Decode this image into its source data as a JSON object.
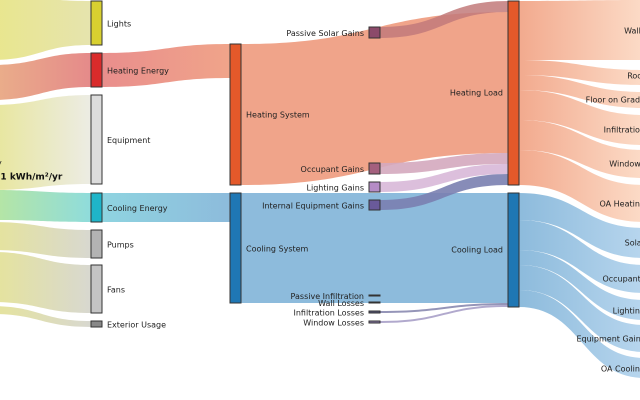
{
  "total": {
    "label_suffix": "y",
    "value_text": ".1 kWh/m²/yr"
  },
  "sources": [
    {
      "label": "Lights",
      "color": "#d8d030"
    },
    {
      "label": "Heating Energy",
      "color": "#d92b2b"
    },
    {
      "label": "Equipment",
      "color": "#dcdcdc"
    },
    {
      "label": "Cooling Energy",
      "color": "#1fb5c9"
    },
    {
      "label": "Pumps",
      "color": "#b3b3b3"
    },
    {
      "label": "Fans",
      "color": "#c4c4c4"
    },
    {
      "label": "Exterior Usage",
      "color": "#888888"
    }
  ],
  "systems": [
    {
      "label": "Heating System",
      "color": "#e4592a"
    },
    {
      "label": "Cooling System",
      "color": "#1f77b4"
    }
  ],
  "gains": [
    {
      "label": "Passive Solar Gains",
      "color": "#8c4a6a"
    },
    {
      "label": "Occupant Gains",
      "color": "#a4607e"
    },
    {
      "label": "Lighting Gains",
      "color": "#b58cc6"
    },
    {
      "label": "Internal Equipment Gains",
      "color": "#6a5a9a"
    },
    {
      "label": "Passive Infiltration",
      "color": "#2a3d66"
    },
    {
      "label": "Wall Losses",
      "color": "#2a3d66"
    },
    {
      "label": "Infiltration Losses",
      "color": "#555577"
    },
    {
      "label": "Window Losses",
      "color": "#8a7aa8"
    }
  ],
  "loads": [
    {
      "label": "Heating Load",
      "color": "#e4592a"
    },
    {
      "label": "Cooling Load",
      "color": "#1f77b4"
    }
  ],
  "outputs": [
    {
      "label": "Walls"
    },
    {
      "label": "Roof"
    },
    {
      "label": "Floor on Grade"
    },
    {
      "label": "Infiltration"
    },
    {
      "label": "Windows"
    },
    {
      "label": "OA Heating"
    },
    {
      "label": "Solar"
    },
    {
      "label": "Occupants"
    },
    {
      "label": "Lighting"
    },
    {
      "label": "Equipment Gains"
    },
    {
      "label": "OA Cooling"
    }
  ],
  "colors": {
    "heat_flow": "#f0a48a",
    "heat_flow_light": "#fbd6c2",
    "cool_flow": "#8dbbdc",
    "cool_flow_light": "#b5d4ec",
    "source_flow": "#e8e48a"
  }
}
